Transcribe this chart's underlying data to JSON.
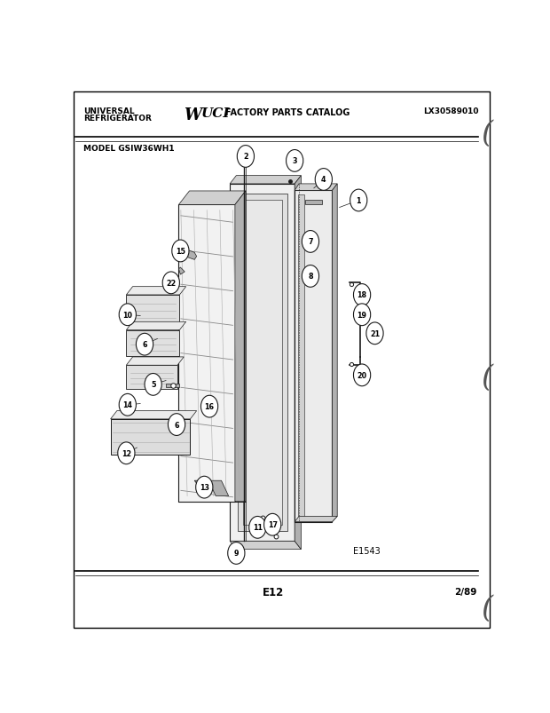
{
  "bg_color": "#ffffff",
  "title_left1": "UNIVERSAL",
  "title_left2": "REFRIGERATOR",
  "title_center_bold": "UCI",
  "title_center_rest": " FACTORY PARTS CATALOG",
  "title_right": "LX30589010",
  "model": "MODEL GSIW36WH1",
  "diagram_id": "E1543",
  "page": "E12",
  "date": "2/89",
  "label_data": [
    [
      0.68,
      0.79,
      0.635,
      0.777,
      1
    ],
    [
      0.415,
      0.87,
      0.415,
      0.85,
      2
    ],
    [
      0.53,
      0.862,
      0.518,
      0.848,
      3
    ],
    [
      0.598,
      0.828,
      0.575,
      0.812,
      4
    ],
    [
      0.198,
      0.455,
      0.228,
      0.462,
      5
    ],
    [
      0.178,
      0.528,
      0.208,
      0.538,
      6
    ],
    [
      0.253,
      0.382,
      0.268,
      0.39,
      6
    ],
    [
      0.567,
      0.715,
      0.548,
      0.72,
      7
    ],
    [
      0.567,
      0.652,
      0.548,
      0.648,
      8
    ],
    [
      0.393,
      0.148,
      0.393,
      0.165,
      9
    ],
    [
      0.138,
      0.582,
      0.168,
      0.58,
      10
    ],
    [
      0.443,
      0.195,
      0.443,
      0.212,
      11
    ],
    [
      0.135,
      0.33,
      0.16,
      0.34,
      12
    ],
    [
      0.318,
      0.268,
      0.32,
      0.282,
      13
    ],
    [
      0.138,
      0.418,
      0.168,
      0.42,
      14
    ],
    [
      0.262,
      0.698,
      0.278,
      0.695,
      15
    ],
    [
      0.33,
      0.415,
      0.34,
      0.422,
      16
    ],
    [
      0.478,
      0.2,
      0.472,
      0.215,
      17
    ],
    [
      0.688,
      0.618,
      0.678,
      0.632,
      18
    ],
    [
      0.688,
      0.582,
      0.678,
      0.57,
      19
    ],
    [
      0.688,
      0.472,
      0.678,
      0.485,
      20
    ],
    [
      0.718,
      0.548,
      0.7,
      0.55,
      21
    ],
    [
      0.24,
      0.64,
      0.255,
      0.648,
      22
    ]
  ]
}
